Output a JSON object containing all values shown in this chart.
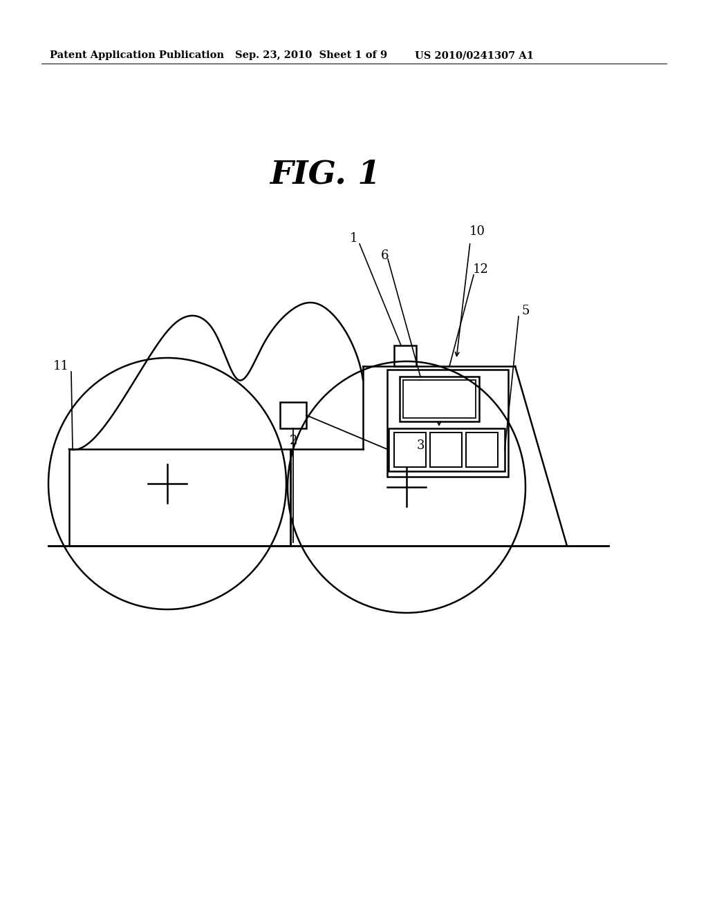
{
  "background_color": "#ffffff",
  "header_text": "Patent Application Publication",
  "header_date": "Sep. 23, 2010  Sheet 1 of 9",
  "header_patent": "US 2010/0241307 A1",
  "fig_title": "FIG. 1",
  "line_color": "#000000",
  "line_width": 1.8
}
